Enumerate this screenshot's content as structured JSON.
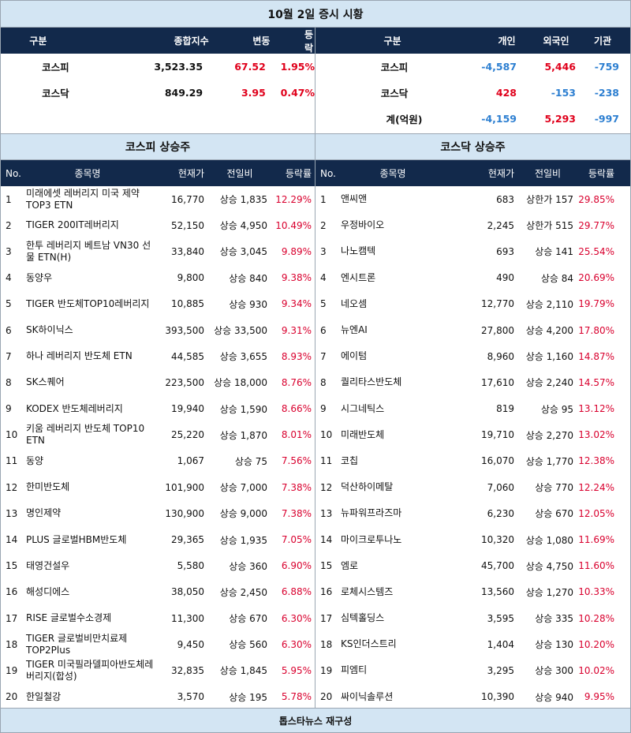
{
  "title": "10월 2일 증시 시황",
  "index_table": {
    "headers": [
      "구분",
      "종합지수",
      "변동",
      "등락"
    ],
    "rows": [
      {
        "name": "코스피",
        "index": "3,523.35",
        "change": "67.52",
        "rate": "1.95%"
      },
      {
        "name": "코스닥",
        "index": "849.29",
        "change": "3.95",
        "rate": "0.47%"
      }
    ]
  },
  "investor_table": {
    "headers": [
      "구분",
      "개인",
      "외국인",
      "기관"
    ],
    "rows": [
      {
        "name": "코스피",
        "individual": "-4,587",
        "foreign": "5,446",
        "institution": "-759"
      },
      {
        "name": "코스닥",
        "individual": "428",
        "foreign": "-153",
        "institution": "-238"
      },
      {
        "name": "계(억원)",
        "individual": "-4,159",
        "foreign": "5,293",
        "institution": "-997"
      }
    ]
  },
  "kospi_title": "코스피 상승주",
  "kosdaq_title": "코스닥 상승주",
  "stock_headers": [
    "No.",
    "종목명",
    "현재가",
    "전일비",
    "등락률"
  ],
  "kospi": [
    {
      "no": "1",
      "name": "미래에셋 레버리지 미국 제약 TOP3 ETN",
      "price": "16,770",
      "change": "상승 1,835",
      "rate": "12.29%"
    },
    {
      "no": "2",
      "name": "TIGER 200IT레버리지",
      "price": "52,150",
      "change": "상승 4,950",
      "rate": "10.49%"
    },
    {
      "no": "3",
      "name": "한투 레버리지 베트남 VN30 선물 ETN(H)",
      "price": "33,840",
      "change": "상승 3,045",
      "rate": "9.89%"
    },
    {
      "no": "4",
      "name": "동양우",
      "price": "9,800",
      "change": "상승 840",
      "rate": "9.38%"
    },
    {
      "no": "5",
      "name": "TIGER 반도체TOP10레버리지",
      "price": "10,885",
      "change": "상승 930",
      "rate": "9.34%"
    },
    {
      "no": "6",
      "name": "SK하이닉스",
      "price": "393,500",
      "change": "상승 33,500",
      "rate": "9.31%"
    },
    {
      "no": "7",
      "name": "하나 레버리지 반도체 ETN",
      "price": "44,585",
      "change": "상승 3,655",
      "rate": "8.93%"
    },
    {
      "no": "8",
      "name": "SK스퀘어",
      "price": "223,500",
      "change": "상승 18,000",
      "rate": "8.76%"
    },
    {
      "no": "9",
      "name": "KODEX 반도체레버리지",
      "price": "19,940",
      "change": "상승 1,590",
      "rate": "8.66%"
    },
    {
      "no": "10",
      "name": "키움 레버리지 반도체 TOP10 ETN",
      "price": "25,220",
      "change": "상승 1,870",
      "rate": "8.01%"
    },
    {
      "no": "11",
      "name": "동양",
      "price": "1,067",
      "change": "상승 75",
      "rate": "7.56%"
    },
    {
      "no": "12",
      "name": "한미반도체",
      "price": "101,900",
      "change": "상승 7,000",
      "rate": "7.38%"
    },
    {
      "no": "13",
      "name": "명인제약",
      "price": "130,900",
      "change": "상승 9,000",
      "rate": "7.38%"
    },
    {
      "no": "14",
      "name": "PLUS 글로벌HBM반도체",
      "price": "29,365",
      "change": "상승 1,935",
      "rate": "7.05%"
    },
    {
      "no": "15",
      "name": "태영건설우",
      "price": "5,580",
      "change": "상승 360",
      "rate": "6.90%"
    },
    {
      "no": "16",
      "name": "해성디에스",
      "price": "38,050",
      "change": "상승 2,450",
      "rate": "6.88%"
    },
    {
      "no": "17",
      "name": "RISE 글로벌수소경제",
      "price": "11,300",
      "change": "상승 670",
      "rate": "6.30%"
    },
    {
      "no": "18",
      "name": "TIGER 글로벌비만치료제TOP2Plus",
      "price": "9,450",
      "change": "상승 560",
      "rate": "6.30%"
    },
    {
      "no": "19",
      "name": "TIGER 미국필라델피아반도체레버리지(합성)",
      "price": "32,835",
      "change": "상승 1,845",
      "rate": "5.95%"
    },
    {
      "no": "20",
      "name": "한일철강",
      "price": "3,570",
      "change": "상승 195",
      "rate": "5.78%"
    }
  ],
  "kosdaq": [
    {
      "no": "1",
      "name": "앤씨앤",
      "price": "683",
      "change": "상한가 157",
      "rate": "29.85%"
    },
    {
      "no": "2",
      "name": "우정바이오",
      "price": "2,245",
      "change": "상한가 515",
      "rate": "29.77%"
    },
    {
      "no": "3",
      "name": "나노캠텍",
      "price": "693",
      "change": "상승 141",
      "rate": "25.54%"
    },
    {
      "no": "4",
      "name": "엔시트론",
      "price": "490",
      "change": "상승 84",
      "rate": "20.69%"
    },
    {
      "no": "5",
      "name": "네오셈",
      "price": "12,770",
      "change": "상승 2,110",
      "rate": "19.79%"
    },
    {
      "no": "6",
      "name": "뉴엔AI",
      "price": "27,800",
      "change": "상승 4,200",
      "rate": "17.80%"
    },
    {
      "no": "7",
      "name": "에이텀",
      "price": "8,960",
      "change": "상승 1,160",
      "rate": "14.87%"
    },
    {
      "no": "8",
      "name": "퀄리타스반도체",
      "price": "17,610",
      "change": "상승 2,240",
      "rate": "14.57%"
    },
    {
      "no": "9",
      "name": "시그네틱스",
      "price": "819",
      "change": "상승 95",
      "rate": "13.12%"
    },
    {
      "no": "10",
      "name": "미래반도체",
      "price": "19,710",
      "change": "상승 2,270",
      "rate": "13.02%"
    },
    {
      "no": "11",
      "name": "코칩",
      "price": "16,070",
      "change": "상승 1,770",
      "rate": "12.38%"
    },
    {
      "no": "12",
      "name": "덕산하이메탈",
      "price": "7,060",
      "change": "상승 770",
      "rate": "12.24%"
    },
    {
      "no": "13",
      "name": "뉴파워프라즈마",
      "price": "6,230",
      "change": "상승 670",
      "rate": "12.05%"
    },
    {
      "no": "14",
      "name": "마이크로투나노",
      "price": "10,320",
      "change": "상승 1,080",
      "rate": "11.69%"
    },
    {
      "no": "15",
      "name": "엠로",
      "price": "45,700",
      "change": "상승 4,750",
      "rate": "11.60%"
    },
    {
      "no": "16",
      "name": "로체시스템즈",
      "price": "13,560",
      "change": "상승 1,270",
      "rate": "10.33%"
    },
    {
      "no": "17",
      "name": "심텍홀딩스",
      "price": "3,595",
      "change": "상승 335",
      "rate": "10.28%"
    },
    {
      "no": "18",
      "name": "KS인더스트리",
      "price": "1,404",
      "change": "상승 130",
      "rate": "10.20%"
    },
    {
      "no": "19",
      "name": "피엠티",
      "price": "3,295",
      "change": "상승 300",
      "rate": "10.02%"
    },
    {
      "no": "20",
      "name": "싸이닉솔루션",
      "price": "10,390",
      "change": "상승 940",
      "rate": "9.95%"
    }
  ],
  "footer": "톱스타뉴스 재구성",
  "colors": {
    "header_bg": "#12294b",
    "title_bg": "#d3e5f3",
    "positive": "#e0001b",
    "negative": "#2d7fd1"
  }
}
